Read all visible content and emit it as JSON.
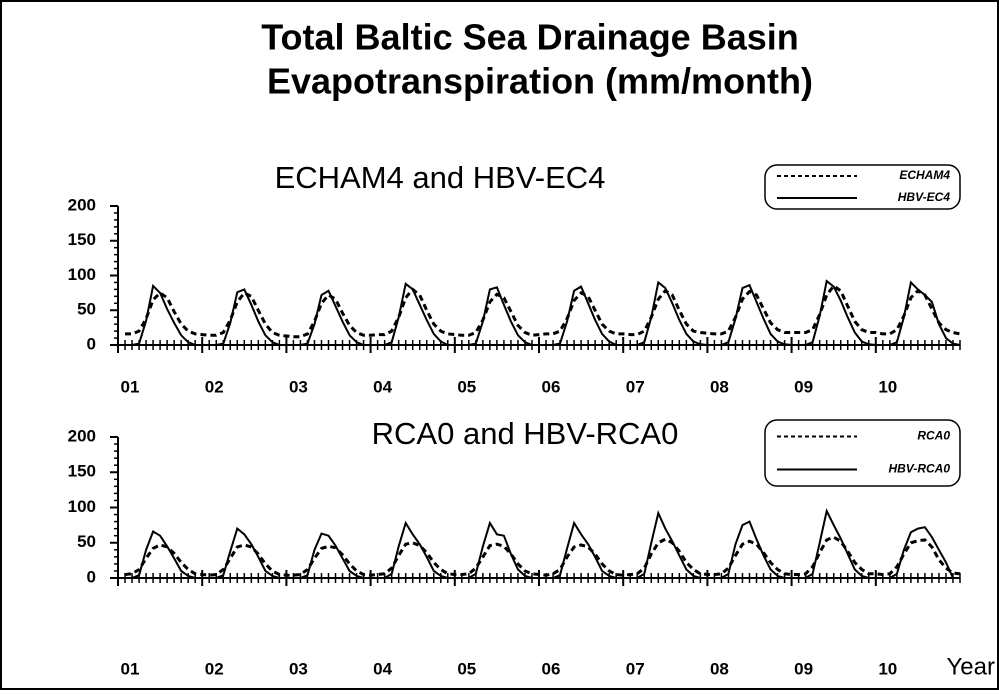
{
  "title": [
    "Total Baltic Sea Drainage Basin",
    "Evapotranspiration (mm/month)"
  ],
  "chart_data": [
    {
      "type": "line",
      "subtitle": "ECHAM4 and HBV-EC4",
      "legend": "upper right",
      "x": [
        1,
        2,
        3,
        4,
        5,
        6,
        7,
        8,
        9,
        10,
        11,
        12,
        13,
        14,
        15,
        16,
        17,
        18,
        19,
        20,
        21,
        22,
        23,
        24,
        25,
        26,
        27,
        28,
        29,
        30,
        31,
        32,
        33,
        34,
        35,
        36,
        37,
        38,
        39,
        40,
        41,
        42,
        43,
        44,
        45,
        46,
        47,
        48,
        49,
        50,
        51,
        52,
        53,
        54,
        55,
        56,
        57,
        58,
        59,
        60,
        61,
        62,
        63,
        64,
        65,
        66,
        67,
        68,
        69,
        70,
        71,
        72,
        73,
        74,
        75,
        76,
        77,
        78,
        79,
        80,
        81,
        82,
        83,
        84,
        85,
        86,
        87,
        88,
        89,
        90,
        91,
        92,
        93,
        94,
        95,
        96,
        97,
        98,
        99,
        100,
        101,
        102,
        103,
        104,
        105,
        106,
        107,
        108,
        109,
        110,
        111,
        112,
        113,
        114,
        115,
        116,
        117,
        118,
        119,
        120
      ],
      "xlim": [
        0,
        120
      ],
      "xticks": [
        {
          "value": 0,
          "label": "01"
        },
        {
          "value": 12,
          "label": "02"
        },
        {
          "value": 24,
          "label": "03"
        },
        {
          "value": 36,
          "label": "04"
        },
        {
          "value": 48,
          "label": "05"
        },
        {
          "value": 60,
          "label": "06"
        },
        {
          "value": 72,
          "label": "07"
        },
        {
          "value": 84,
          "label": "08"
        },
        {
          "value": 96,
          "label": "09"
        },
        {
          "value": 108,
          "label": "10"
        }
      ],
      "ylim": [
        0,
        200
      ],
      "yticks": [
        0,
        50,
        100,
        150,
        200
      ],
      "series": [
        {
          "name": "ECHAM4",
          "color": "#000000",
          "linestyle": "dashed",
          "values": [
            16,
            16,
            20,
            38,
            65,
            75,
            68,
            48,
            30,
            20,
            16,
            15,
            14,
            14,
            18,
            36,
            62,
            75,
            70,
            50,
            30,
            18,
            14,
            13,
            12,
            12,
            16,
            34,
            60,
            72,
            66,
            46,
            28,
            18,
            14,
            14,
            15,
            15,
            20,
            40,
            68,
            80,
            72,
            50,
            30,
            20,
            16,
            15,
            14,
            14,
            18,
            36,
            62,
            73,
            68,
            48,
            28,
            18,
            14,
            15,
            16,
            16,
            20,
            38,
            64,
            75,
            70,
            50,
            30,
            20,
            16,
            16,
            15,
            15,
            20,
            40,
            66,
            78,
            72,
            50,
            30,
            20,
            18,
            17,
            16,
            16,
            20,
            40,
            66,
            77,
            72,
            52,
            32,
            22,
            18,
            18,
            18,
            18,
            22,
            44,
            72,
            85,
            78,
            56,
            34,
            22,
            18,
            18,
            16,
            16,
            22,
            42,
            68,
            78,
            72,
            52,
            32,
            22,
            18,
            16
          ]
        },
        {
          "name": "HBV-EC4",
          "color": "#000000",
          "linestyle": "solid",
          "values": [
            0,
            0,
            2,
            35,
            85,
            75,
            52,
            32,
            14,
            4,
            0,
            0,
            0,
            0,
            2,
            32,
            76,
            80,
            58,
            34,
            14,
            4,
            0,
            0,
            0,
            0,
            2,
            30,
            72,
            78,
            56,
            34,
            14,
            4,
            0,
            0,
            0,
            0,
            4,
            40,
            88,
            80,
            58,
            36,
            16,
            5,
            0,
            0,
            0,
            0,
            2,
            34,
            80,
            83,
            58,
            34,
            14,
            4,
            0,
            0,
            0,
            0,
            2,
            34,
            78,
            84,
            60,
            36,
            16,
            5,
            0,
            0,
            0,
            0,
            4,
            40,
            90,
            82,
            60,
            36,
            16,
            5,
            1,
            0,
            0,
            0,
            4,
            38,
            82,
            86,
            62,
            38,
            16,
            5,
            1,
            0,
            0,
            0,
            4,
            42,
            92,
            84,
            64,
            40,
            18,
            5,
            1,
            0,
            0,
            0,
            4,
            40,
            90,
            80,
            72,
            62,
            30,
            10,
            2,
            0
          ]
        }
      ]
    },
    {
      "type": "line",
      "subtitle": "RCA0 and HBV-RCA0",
      "legend": "upper right",
      "xlabel": "Year",
      "x": [
        1,
        2,
        3,
        4,
        5,
        6,
        7,
        8,
        9,
        10,
        11,
        12,
        13,
        14,
        15,
        16,
        17,
        18,
        19,
        20,
        21,
        22,
        23,
        24,
        25,
        26,
        27,
        28,
        29,
        30,
        31,
        32,
        33,
        34,
        35,
        36,
        37,
        38,
        39,
        40,
        41,
        42,
        43,
        44,
        45,
        46,
        47,
        48,
        49,
        50,
        51,
        52,
        53,
        54,
        55,
        56,
        57,
        58,
        59,
        60,
        61,
        62,
        63,
        64,
        65,
        66,
        67,
        68,
        69,
        70,
        71,
        72,
        73,
        74,
        75,
        76,
        77,
        78,
        79,
        80,
        81,
        82,
        83,
        84,
        85,
        86,
        87,
        88,
        89,
        90,
        91,
        92,
        93,
        94,
        95,
        96,
        97,
        98,
        99,
        100,
        101,
        102,
        103,
        104,
        105,
        106,
        107,
        108,
        109,
        110,
        111,
        112,
        113,
        114,
        115,
        116,
        117,
        118,
        119,
        120
      ],
      "xlim": [
        0,
        120
      ],
      "xticks": [
        {
          "value": 0,
          "label": "01"
        },
        {
          "value": 12,
          "label": "02"
        },
        {
          "value": 24,
          "label": "03"
        },
        {
          "value": 36,
          "label": "04"
        },
        {
          "value": 48,
          "label": "05"
        },
        {
          "value": 60,
          "label": "06"
        },
        {
          "value": 72,
          "label": "07"
        },
        {
          "value": 84,
          "label": "08"
        },
        {
          "value": 96,
          "label": "09"
        },
        {
          "value": 108,
          "label": "10"
        }
      ],
      "ylim": [
        0,
        200
      ],
      "yticks": [
        0,
        50,
        100,
        150,
        200
      ],
      "series": [
        {
          "name": "RCA0",
          "color": "#000000",
          "linestyle": "dashed",
          "values": [
            5,
            6,
            12,
            28,
            42,
            47,
            44,
            35,
            22,
            12,
            6,
            5,
            4,
            5,
            12,
            28,
            44,
            47,
            44,
            34,
            20,
            10,
            5,
            4,
            4,
            5,
            12,
            28,
            42,
            45,
            43,
            33,
            20,
            10,
            5,
            4,
            5,
            6,
            14,
            32,
            48,
            50,
            46,
            36,
            22,
            12,
            6,
            5,
            5,
            6,
            14,
            30,
            46,
            48,
            45,
            34,
            20,
            10,
            6,
            5,
            4,
            6,
            12,
            30,
            44,
            47,
            44,
            34,
            20,
            10,
            5,
            4,
            5,
            6,
            14,
            34,
            50,
            55,
            50,
            38,
            22,
            12,
            6,
            5,
            5,
            6,
            14,
            32,
            48,
            52,
            48,
            36,
            22,
            12,
            6,
            5,
            5,
            6,
            16,
            36,
            54,
            58,
            52,
            38,
            22,
            12,
            6,
            6,
            5,
            6,
            16,
            34,
            50,
            53,
            54,
            44,
            26,
            14,
            7,
            6
          ]
        },
        {
          "name": "HBV-RCA0",
          "color": "#000000",
          "linestyle": "solid",
          "values": [
            0,
            0,
            4,
            40,
            66,
            60,
            45,
            28,
            10,
            3,
            0,
            0,
            0,
            0,
            4,
            38,
            70,
            62,
            48,
            30,
            10,
            3,
            0,
            0,
            0,
            0,
            4,
            40,
            63,
            60,
            46,
            28,
            10,
            3,
            0,
            0,
            0,
            0,
            6,
            45,
            78,
            62,
            48,
            30,
            10,
            3,
            0,
            0,
            0,
            0,
            6,
            45,
            78,
            62,
            60,
            34,
            12,
            3,
            0,
            0,
            0,
            0,
            4,
            42,
            78,
            62,
            48,
            30,
            10,
            3,
            0,
            0,
            0,
            0,
            6,
            50,
            92,
            70,
            52,
            32,
            12,
            3,
            0,
            0,
            0,
            0,
            6,
            48,
            75,
            80,
            55,
            32,
            12,
            3,
            0,
            0,
            0,
            0,
            6,
            50,
            95,
            75,
            56,
            34,
            12,
            3,
            0,
            0,
            0,
            0,
            6,
            40,
            65,
            70,
            72,
            58,
            40,
            22,
            0,
            0
          ]
        }
      ]
    }
  ]
}
